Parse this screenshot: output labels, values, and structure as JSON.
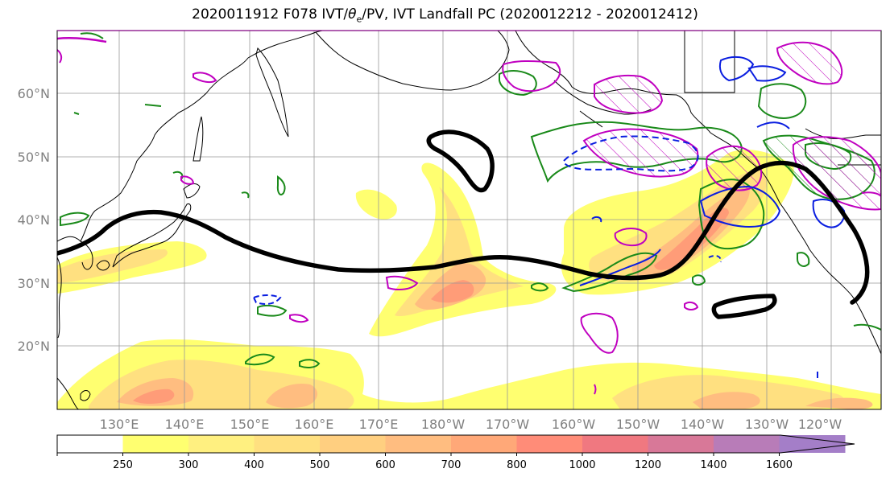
{
  "title": {
    "prefix": "2020011912 F078 IVT/",
    "theta": "θ",
    "subscript": "e",
    "suffix": "/PV, IVT Landfall PC (2020012212 - 2020012412)"
  },
  "map": {
    "lat_labels": [
      "60°N",
      "50°N",
      "40°N",
      "30°N",
      "20°N"
    ],
    "lon_labels": [
      "130°E",
      "140°E",
      "150°E",
      "160°E",
      "170°E",
      "180°W",
      "170°W",
      "160°W",
      "150°W",
      "140°W",
      "130°W",
      "120°W"
    ],
    "colors": {
      "theta_e_contour": "#1a8a1a",
      "pv_contour": "#c000c0",
      "blue_contour": "#0a1ee0",
      "landfall_pc": "#000000",
      "coastline": "#000000",
      "grid": "#999999"
    }
  },
  "colorbar": {
    "ticks": [
      "250",
      "300",
      "400",
      "500",
      "600",
      "700",
      "800",
      "1000",
      "1200",
      "1400",
      "1600"
    ],
    "colors": [
      "#ffff70",
      "#fff080",
      "#ffe080",
      "#ffcf80",
      "#ffbd80",
      "#ffa878",
      "#ff8c78",
      "#f07880",
      "#d87898",
      "#b87cb8",
      "#a47ec8"
    ]
  }
}
